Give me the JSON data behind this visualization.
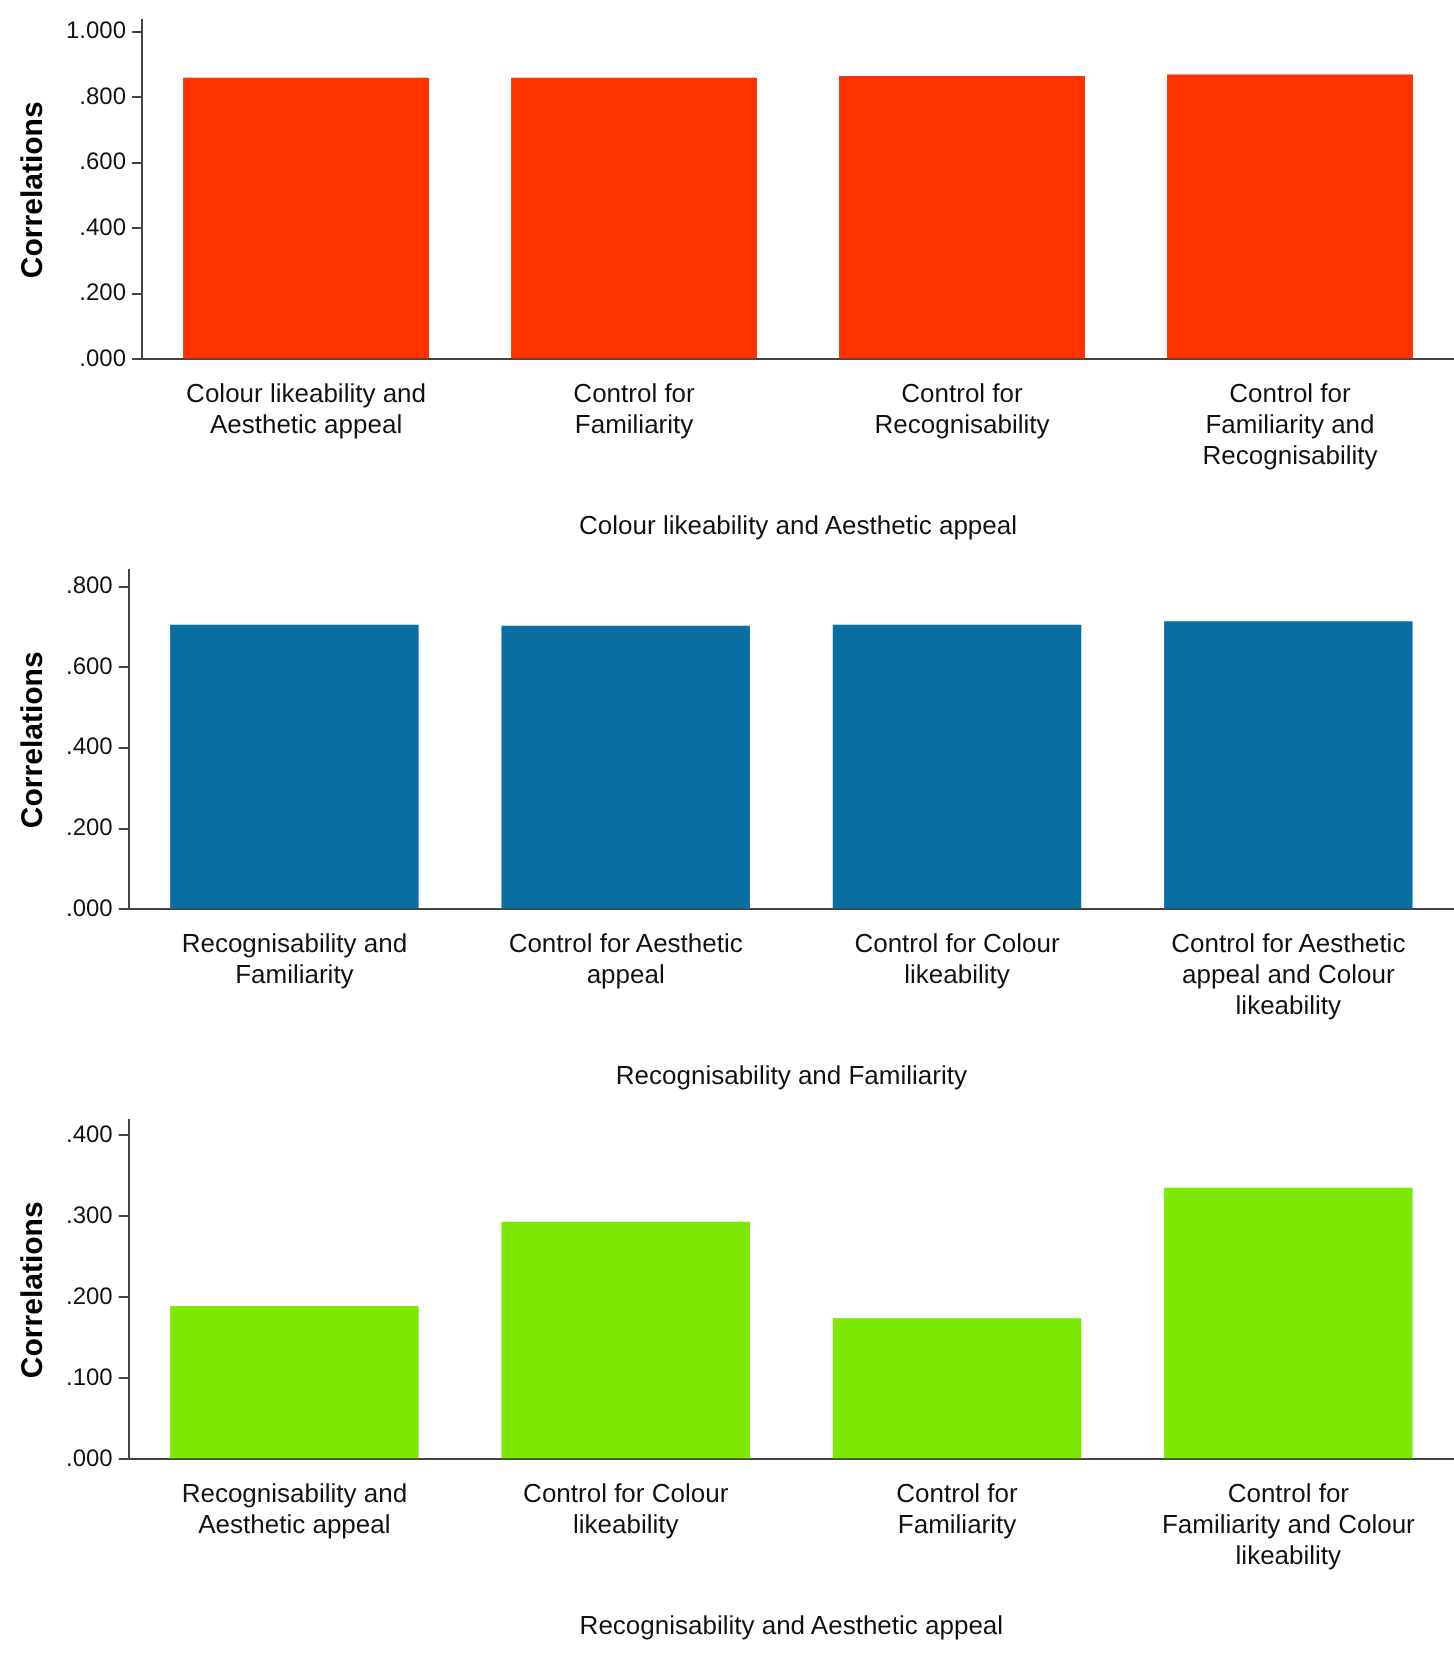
{
  "chart_data": [
    {
      "type": "bar",
      "xlabel": "Colour likeability and Aesthetic appeal",
      "ylabel": "Correlations",
      "categories": [
        "Colour likeability and Aesthetic appeal",
        "Control for Familiarity",
        "Control for Recognisability",
        "Control for Familiarity and Recognisability"
      ],
      "values": [
        0.86,
        0.86,
        0.865,
        0.87
      ],
      "color": "#ff3300",
      "ylim": [
        0,
        1.035
      ],
      "yticks": [
        {
          "value": 0,
          "label": ".000"
        },
        {
          "value": 0.2,
          "label": ".200"
        },
        {
          "value": 0.4,
          "label": ".400"
        },
        {
          "value": 0.6,
          "label": ".600"
        },
        {
          "value": 0.8,
          "label": ".800"
        },
        {
          "value": 1,
          "label": "1.000"
        }
      ],
      "grid": false,
      "legend": false
    },
    {
      "type": "bar",
      "xlabel": "Recognisability and Familiarity",
      "ylabel": "Correlations",
      "categories": [
        "Recognisability and Familiarity",
        "Control for Aesthetic appeal",
        "Control for Colour likeability",
        "Control for Aesthetic appeal and Colour likeability"
      ],
      "values": [
        0.705,
        0.703,
        0.705,
        0.714
      ],
      "color": "#0a6fa0",
      "ylim": [
        0,
        0.84
      ],
      "yticks": [
        {
          "value": 0,
          "label": ".000"
        },
        {
          "value": 0.2,
          "label": ".200"
        },
        {
          "value": 0.4,
          "label": ".400"
        },
        {
          "value": 0.6,
          "label": ".600"
        },
        {
          "value": 0.8,
          "label": ".800"
        }
      ],
      "grid": false,
      "legend": false
    },
    {
      "type": "bar",
      "xlabel": "Recognisability and Aesthetic appeal",
      "ylabel": "Correlations",
      "categories": [
        "Recognisability and Aesthetic appeal",
        "Control for Colour likeability",
        "Control for Familiarity",
        "Control for Familiarity and Colour likeability"
      ],
      "values": [
        0.189,
        0.293,
        0.174,
        0.335
      ],
      "color": "#7de800",
      "ylim": [
        0,
        0.418
      ],
      "yticks": [
        {
          "value": 0,
          "label": ".000"
        },
        {
          "value": 0.1,
          "label": ".100"
        },
        {
          "value": 0.2,
          "label": ".200"
        },
        {
          "value": 0.3,
          "label": ".300"
        },
        {
          "value": 0.4,
          "label": ".400"
        }
      ],
      "grid": false,
      "legend": false
    }
  ]
}
